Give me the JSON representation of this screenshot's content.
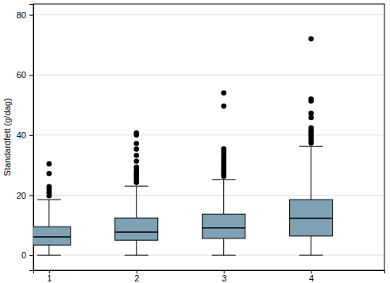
{
  "chart_data": {
    "type": "box",
    "ylabel": "Standardfett (g/dag)",
    "categories": [
      "1",
      "2",
      "3",
      "4"
    ],
    "color": "#7ea1b4",
    "ylim": [
      -5,
      83.6
    ],
    "yticks": [
      0,
      20,
      40,
      60,
      80
    ],
    "grid": true,
    "boxes": [
      {
        "whisker_low": 0,
        "q1": 3.4,
        "median": 6.1,
        "q3": 9.5,
        "whisker_high": 18.5,
        "outliers": [
          30.4,
          27.2,
          22.8,
          21.8,
          20.8,
          19.8
        ]
      },
      {
        "whisker_low": 0,
        "q1": 5.0,
        "median": 7.7,
        "q3": 12.4,
        "whisker_high": 23.0,
        "outliers": [
          40.7,
          40.0,
          37.2,
          35.3,
          33.2,
          31.3,
          29.3,
          28.3,
          27.5,
          26.7,
          25.9,
          25.0,
          24.2
        ]
      },
      {
        "whisker_low": 0,
        "q1": 5.6,
        "median": 9.1,
        "q3": 13.7,
        "whisker_high": 25.2,
        "outliers": [
          54.0,
          49.6,
          35.4,
          34.5,
          33.5,
          32.5,
          31.6,
          30.8,
          30.0,
          29.2,
          28.4,
          27.8,
          27.0,
          26.3
        ]
      },
      {
        "whisker_low": 0,
        "q1": 6.4,
        "median": 12.3,
        "q3": 18.5,
        "whisker_high": 36.2,
        "outliers": [
          72.0,
          52.0,
          51.3,
          47.2,
          45.8,
          42.4,
          41.5,
          40.7,
          39.9,
          39.0,
          38.2,
          37.3
        ]
      }
    ]
  }
}
